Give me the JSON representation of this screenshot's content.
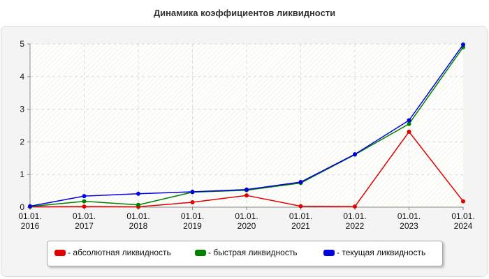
{
  "chart_data": {
    "type": "line",
    "title": "Динамика коэффициентов ликвидности",
    "x_tick_labels": [
      [
        "01.01.",
        "2016"
      ],
      [
        "01.01.",
        "2017"
      ],
      [
        "01.01.",
        "2018"
      ],
      [
        "01.01.",
        "2019"
      ],
      [
        "01.01.",
        "2020"
      ],
      [
        "01.01.",
        "2021"
      ],
      [
        "01.01.",
        "2022"
      ],
      [
        "01.01.",
        "2023"
      ],
      [
        "01.01.",
        "2024"
      ]
    ],
    "ylim": [
      0,
      5
    ],
    "y_ticks": [
      "0",
      "1",
      "2",
      "3",
      "4",
      "5"
    ],
    "grid": true,
    "legend_position": "bottom",
    "series": [
      {
        "name": "- абсолютная ликвидность",
        "color": "#e00000",
        "values": [
          0.01,
          0.02,
          0.01,
          0.15,
          0.36,
          0.03,
          0.02,
          2.31,
          0.18
        ]
      },
      {
        "name": "- быстрая ликвидность",
        "color": "#008000",
        "values": [
          0.02,
          0.18,
          0.07,
          0.46,
          0.52,
          0.74,
          1.61,
          2.55,
          4.9
        ]
      },
      {
        "name": "- текущая ликвидность",
        "color": "#0000e0",
        "values": [
          0.03,
          0.34,
          0.41,
          0.47,
          0.54,
          0.77,
          1.62,
          2.66,
          4.98
        ]
      }
    ]
  }
}
